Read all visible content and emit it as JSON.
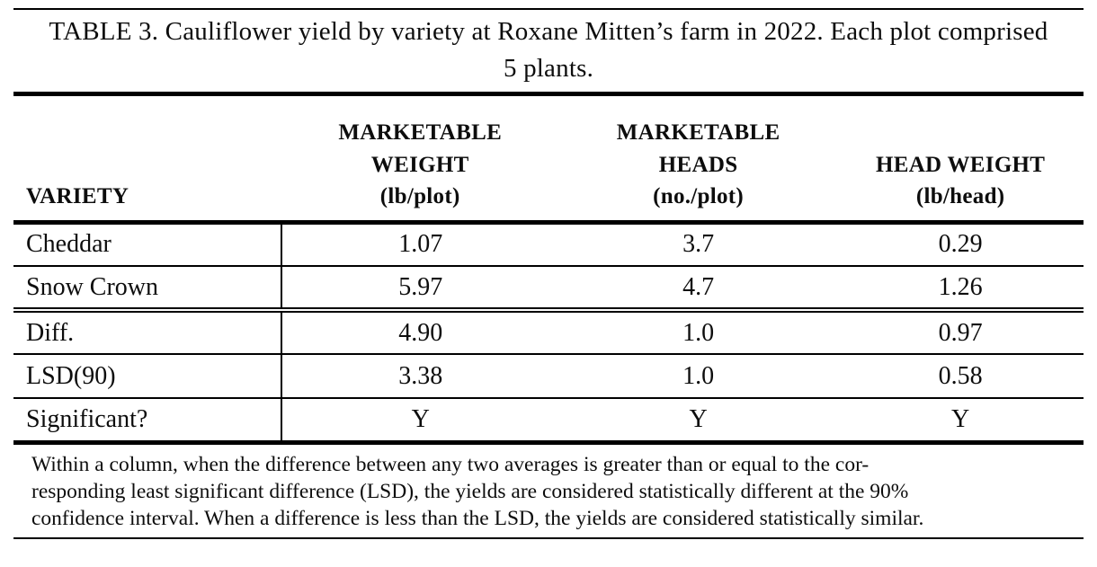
{
  "document": {
    "title": "TABLE 3. Cauliflower yield by variety at Roxane Mitten’s farm in 2022. Each plot comprised 5 plants.",
    "header": {
      "variety": "VARIETY",
      "marketable_weight": "MARKETABLE\nWEIGHT\n(lb/plot)",
      "marketable_heads": "MARKETABLE\nHEADS\n(no./plot)",
      "head_weight": "HEAD WEIGHT\n(lb/head)"
    },
    "rows": [
      {
        "label": "Cheddar",
        "values": [
          "1.07",
          "3.7",
          "0.29"
        ]
      },
      {
        "label": "Snow Crown",
        "values": [
          "5.97",
          "4.7",
          "1.26"
        ]
      },
      {
        "label": "Diff.",
        "values": [
          "4.90",
          "1.0",
          "0.97"
        ]
      },
      {
        "label": "LSD(90)",
        "values": [
          "3.38",
          "1.0",
          "0.58"
        ]
      },
      {
        "label": "Significant?",
        "values": [
          "Y",
          "Y",
          "Y"
        ]
      }
    ],
    "footnote": "Within a column, when the difference between any two averages is greater than or equal to the cor-\nresponding least significant difference (LSD), the yields are considered statistically different at the 90%\nconfidence interval. When a difference is less than the LSD, the yields are considered statistically similar.",
    "colors": {
      "text": "#0d0d0d",
      "rule": "#000000",
      "background": "#ffffff"
    }
  }
}
